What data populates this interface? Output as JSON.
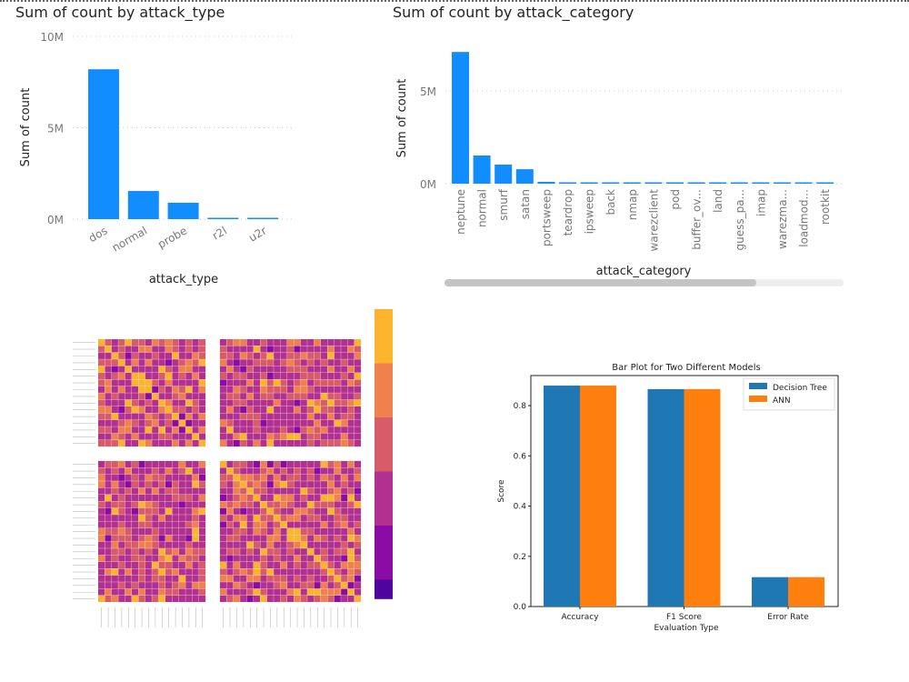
{
  "chart_data": [
    {
      "type": "bar",
      "title": "Sum of count by attack_type",
      "xlabel": "attack_type",
      "ylabel": "Sum of count",
      "yticks": [
        "0M",
        "5M",
        "10M"
      ],
      "ylim": [
        0,
        10000000
      ],
      "grid": true,
      "color": "#118DFF",
      "categories": [
        "dos",
        "normal",
        "probe",
        "r2l",
        "u2r"
      ],
      "values": [
        8200000,
        1540000,
        900000,
        30000,
        10000
      ]
    },
    {
      "type": "bar",
      "title": "Sum of count by attack_category",
      "xlabel": "attack_category",
      "ylabel": "Sum of count",
      "yticks": [
        "0M",
        "5M"
      ],
      "ylim": [
        0,
        7500000
      ],
      "grid": true,
      "color": "#118DFF",
      "horizontal_scrollbar": true,
      "categories": [
        "neptune",
        "normal",
        "smurf",
        "satan",
        "portsweep",
        "teardrop",
        "ipsweep",
        "back",
        "nmap",
        "warezclient",
        "pod",
        "buffer_ov...",
        "land",
        "guess_pa...",
        "imap",
        "warezma...",
        "loadmod...",
        "rootkit"
      ],
      "values": [
        7100000,
        1520000,
        1030000,
        780000,
        100000,
        30000,
        30000,
        30000,
        30000,
        30000,
        30000,
        30000,
        30000,
        30000,
        30000,
        30000,
        30000,
        30000
      ]
    },
    {
      "type": "heatmap",
      "colormap": "plasma",
      "colorbar_colors": [
        "#fcb42c",
        "#f0804e",
        "#d85b6a",
        "#b2308f",
        "#8a0ca4",
        "#4f04a0"
      ]
    },
    {
      "type": "bar",
      "title": "Bar Plot for Two Different Models",
      "xlabel": "Evaluation Type",
      "ylabel": "Score",
      "ylim": [
        0,
        0.92
      ],
      "yticks": [
        "0.0",
        "0.2",
        "0.4",
        "0.6",
        "0.8"
      ],
      "legend": "top-right",
      "categories": [
        "Accuracy",
        "F1 Score",
        "Error Rate"
      ],
      "series": [
        {
          "name": "Decision Tree",
          "color": "#1f77b4",
          "values": [
            0.88,
            0.866,
            0.117
          ]
        },
        {
          "name": "ANN",
          "color": "#ff7f0e",
          "values": [
            0.88,
            0.866,
            0.117
          ]
        }
      ]
    }
  ]
}
